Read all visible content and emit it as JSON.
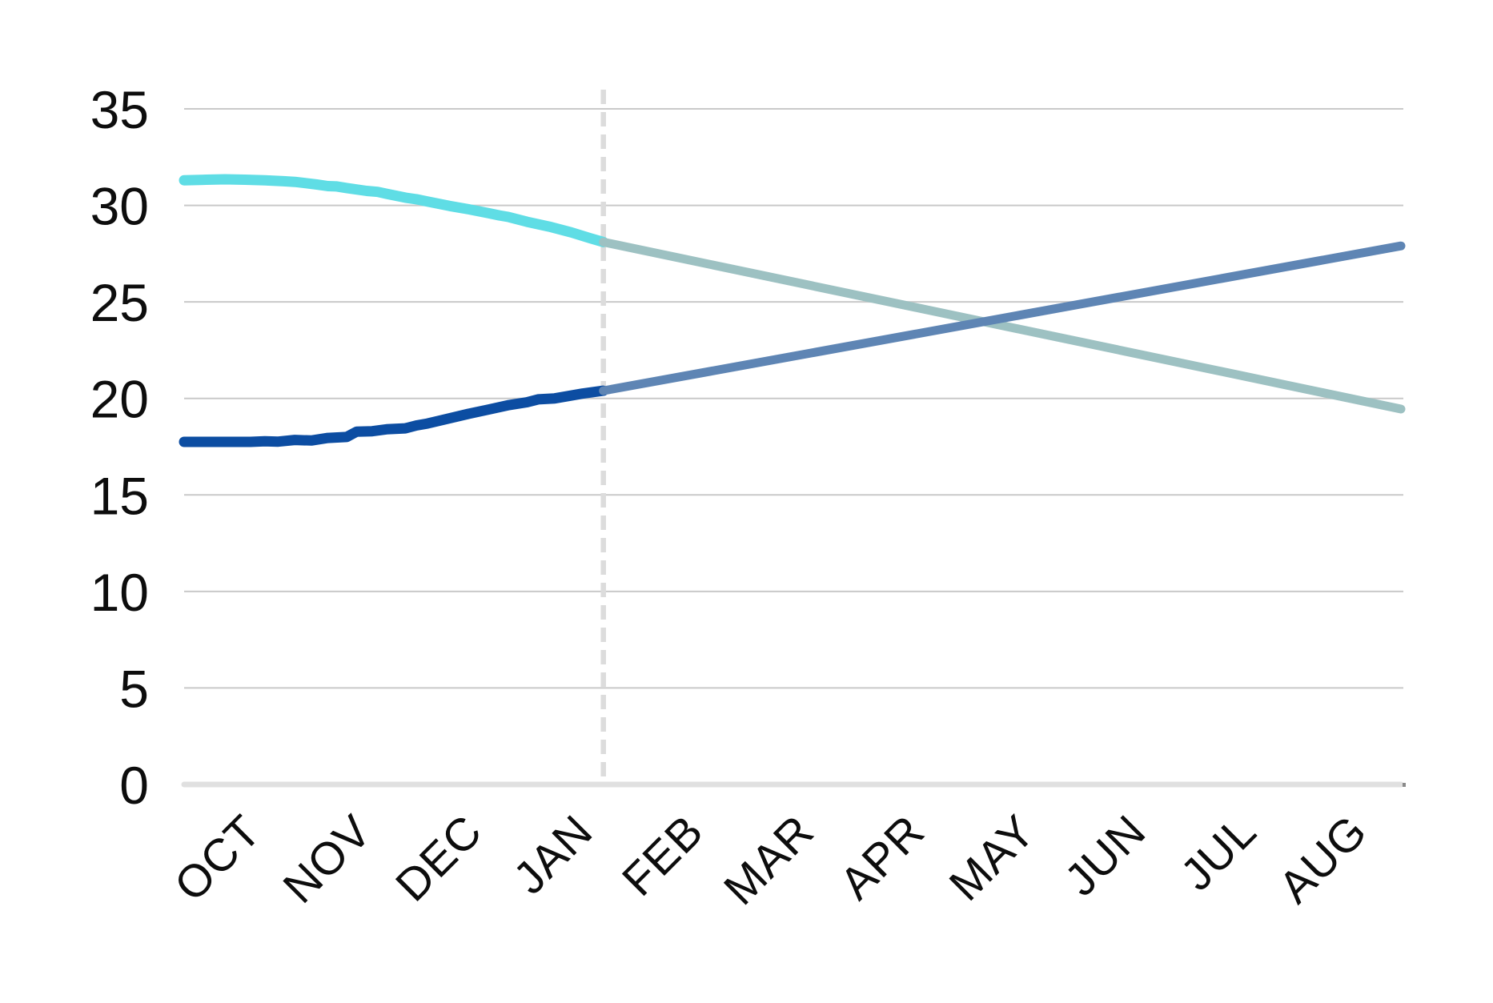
{
  "chart_data": {
    "type": "line",
    "title": "",
    "categories": [
      "OCT",
      "NOV",
      "DEC",
      "JAN",
      "FEB",
      "MAR",
      "APR",
      "MAY",
      "JUN",
      "JUL",
      "AUG"
    ],
    "yticks": [
      0,
      5,
      10,
      15,
      20,
      25,
      30,
      35
    ],
    "ylim": [
      0,
      35
    ],
    "grid": "horizontal",
    "legend": "none",
    "divider": {
      "month_position": 3.79,
      "style": "dashed",
      "color": "#dcdcdc",
      "meaning": "history-forecast-split at JAN"
    },
    "series": [
      {
        "name": "upper-series-historical",
        "segment": "historical",
        "color": "#5fdde5",
        "stroke_width": 13,
        "points": [
          [
            0.0,
            31.3
          ],
          [
            0.2,
            31.33
          ],
          [
            0.37,
            31.35
          ],
          [
            0.55,
            31.33
          ],
          [
            0.73,
            31.3
          ],
          [
            0.9,
            31.25
          ],
          [
            1.0,
            31.22
          ],
          [
            1.1,
            31.15
          ],
          [
            1.2,
            31.08
          ],
          [
            1.3,
            31.0
          ],
          [
            1.38,
            30.98
          ],
          [
            1.47,
            30.9
          ],
          [
            1.65,
            30.75
          ],
          [
            1.75,
            30.7
          ],
          [
            1.83,
            30.6
          ],
          [
            2.0,
            30.4
          ],
          [
            2.1,
            30.32
          ],
          [
            2.2,
            30.2
          ],
          [
            2.4,
            29.97
          ],
          [
            2.57,
            29.8
          ],
          [
            2.75,
            29.6
          ],
          [
            2.85,
            29.48
          ],
          [
            2.93,
            29.4
          ],
          [
            3.1,
            29.15
          ],
          [
            3.3,
            28.9
          ],
          [
            3.5,
            28.6
          ],
          [
            3.67,
            28.3
          ],
          [
            3.79,
            28.1
          ]
        ]
      },
      {
        "name": "upper-series-forecast",
        "segment": "forecast",
        "color": "#9dc1c2",
        "stroke_width": 11,
        "points": [
          [
            3.79,
            28.1
          ],
          [
            11.0,
            19.45
          ]
        ]
      },
      {
        "name": "lower-series-historical",
        "segment": "historical",
        "color": "#0c4da2",
        "stroke_width": 13,
        "points": [
          [
            0.0,
            17.75
          ],
          [
            0.37,
            17.75
          ],
          [
            0.6,
            17.75
          ],
          [
            0.73,
            17.78
          ],
          [
            0.85,
            17.76
          ],
          [
            1.0,
            17.85
          ],
          [
            1.15,
            17.82
          ],
          [
            1.3,
            17.95
          ],
          [
            1.47,
            18.0
          ],
          [
            1.56,
            18.28
          ],
          [
            1.7,
            18.3
          ],
          [
            1.83,
            18.4
          ],
          [
            2.0,
            18.45
          ],
          [
            2.1,
            18.6
          ],
          [
            2.2,
            18.7
          ],
          [
            2.35,
            18.9
          ],
          [
            2.57,
            19.2
          ],
          [
            2.75,
            19.42
          ],
          [
            2.93,
            19.65
          ],
          [
            3.1,
            19.8
          ],
          [
            3.2,
            19.95
          ],
          [
            3.35,
            20.0
          ],
          [
            3.45,
            20.1
          ],
          [
            3.6,
            20.25
          ],
          [
            3.79,
            20.4
          ]
        ]
      },
      {
        "name": "lower-series-forecast",
        "segment": "forecast",
        "color": "#5e85b4",
        "stroke_width": 11,
        "points": [
          [
            3.79,
            20.4
          ],
          [
            11.0,
            27.9
          ]
        ]
      }
    ],
    "colors": {
      "gridline": "#c9c9c9",
      "baseline_axis": "#e0e0e0",
      "tick_text": "#0d0d0d"
    },
    "layout_hints": {
      "x_label_rotation_deg": -45,
      "divider_extends": "full plot height",
      "crossover": "forecast lines cross near MAY at value ~24"
    }
  }
}
